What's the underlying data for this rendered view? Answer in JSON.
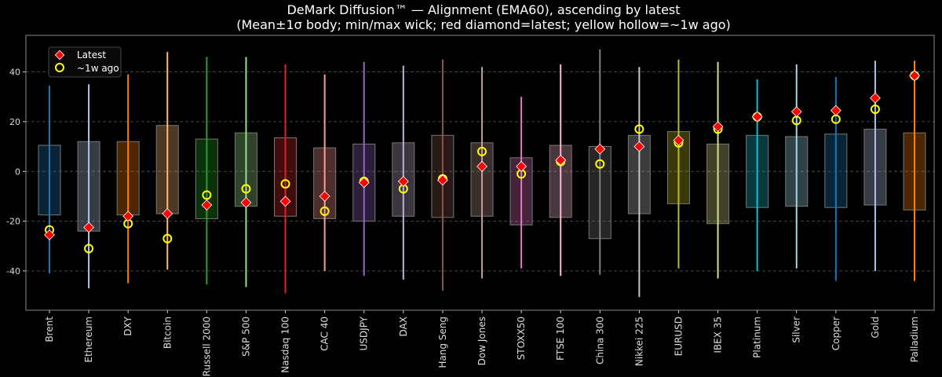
{
  "chart_data": {
    "type": "box",
    "title": "DeMark Diffusion™ — Alignment (EMA60), ascending by latest",
    "subtitle": "(Mean±1σ body; min/max wick; red diamond=latest; yellow hollow=~1w ago)",
    "xlabel": "",
    "ylabel": "",
    "ylim": [
      -55.8,
      54.7
    ],
    "yticks": [
      -40,
      -20,
      0,
      20,
      40
    ],
    "grid": "horizontal dashed",
    "legend": {
      "placement": "top-left",
      "entries": [
        "Latest",
        "~1w ago"
      ]
    },
    "marker_colors": {
      "latest": "#ff0000",
      "week_ago": "#ffff00"
    },
    "categories": [
      "Brent",
      "Ethereum",
      "DXY",
      "Bitcoin",
      "Russell 2000",
      "S&P 500",
      "Nasdaq 100",
      "CAC 40",
      "USDJPY",
      "DAX",
      "Hang Seng",
      "Dow Jones",
      "STOXX50",
      "FTSE 100",
      "China 300",
      "Nikkei 225",
      "EURUSD",
      "IBEX 35",
      "Platinum",
      "Silver",
      "Copper",
      "Gold",
      "Palladium"
    ],
    "colors": [
      "#1f77b4",
      "#aec7e8",
      "#ff7f0e",
      "#ffbb78",
      "#2ca02c",
      "#98df8a",
      "#d62728",
      "#ff9896",
      "#9467bd",
      "#c5b0d5",
      "#8c564b",
      "#c49c94",
      "#e377c2",
      "#f7b6d2",
      "#7f7f7f",
      "#c7c7c7",
      "#bcbd22",
      "#dbdb8d",
      "#17becf",
      "#9edae5",
      "#1f77b4",
      "#aec7e8",
      "#ff7f0e"
    ],
    "body_low": [
      -17.5,
      -24,
      -17.5,
      -17,
      -19,
      -14,
      -18,
      -19,
      -20,
      -18,
      -18.5,
      -18,
      -21.5,
      -18.5,
      -27,
      -17,
      -13,
      -21,
      -14.5,
      -14,
      -14.5,
      -13.5,
      -15.5
    ],
    "body_high": [
      10.5,
      12,
      12,
      18.5,
      13,
      15.5,
      13.5,
      9.5,
      11,
      11.5,
      14.5,
      11.5,
      5.5,
      10.5,
      10,
      14.5,
      16,
      11,
      14.5,
      14,
      15,
      17,
      15.5
    ],
    "min": [
      -41,
      -47,
      -45,
      -39.5,
      -45.5,
      -46.5,
      -49,
      -40,
      -42,
      -43.5,
      -48,
      -43,
      -39,
      -42,
      -41.5,
      -50.5,
      -39,
      -43,
      -40,
      -39,
      -44,
      -40,
      -44
    ],
    "max": [
      34.5,
      35,
      39,
      48,
      46,
      46,
      43,
      39,
      44,
      42.5,
      45,
      42,
      30,
      43,
      49,
      42,
      45,
      44,
      37,
      43,
      38,
      44.5,
      44.5
    ],
    "latest": [
      -25.5,
      -22.5,
      -18,
      -17,
      -13.5,
      -12.5,
      -12,
      -10,
      -4.5,
      -4,
      -3.5,
      2,
      2,
      4.5,
      9,
      10,
      12.5,
      18,
      22,
      24,
      24.5,
      29.5,
      38.5
    ],
    "week_ago": [
      -23.5,
      -31,
      -21,
      -27,
      -9.5,
      -7,
      -5,
      -16,
      -4,
      -7,
      -3,
      8,
      -1,
      4,
      3,
      17,
      11.5,
      17,
      22,
      20.5,
      21,
      25,
      38.5
    ]
  }
}
